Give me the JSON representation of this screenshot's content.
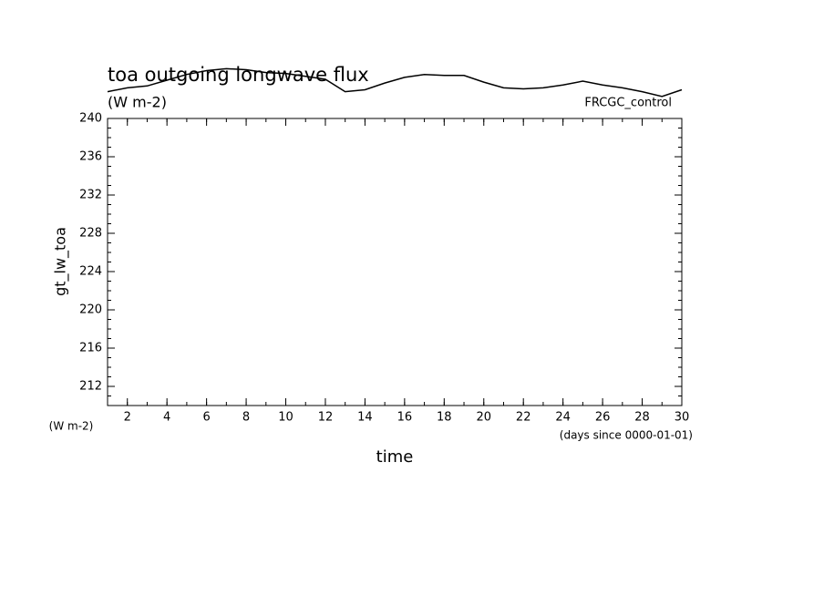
{
  "chart_data": {
    "type": "line",
    "title": "toa outgoing longwave flux",
    "subtitle": "(W m-2)",
    "annotation": "FRCGC_control",
    "y_label": "gt_lw_toa",
    "y_unit": "(W m-2)",
    "x_label": "time",
    "x_unit": "(days since 0000-01-01)",
    "x": [
      1,
      2,
      3,
      4,
      5,
      6,
      7,
      8,
      9,
      10,
      11,
      12,
      13,
      14,
      15,
      16,
      17,
      18,
      19,
      20,
      21,
      22,
      23,
      24,
      25,
      26,
      27,
      28,
      29,
      30
    ],
    "series": [
      {
        "name": "gt_lw_toa",
        "color": "#000000",
        "values": [
          242.8,
          243.2,
          243.4,
          244.0,
          244.6,
          245.0,
          245.2,
          245.1,
          244.8,
          244.7,
          244.4,
          244.1,
          242.8,
          243.0,
          243.7,
          244.3,
          244.6,
          244.5,
          244.5,
          243.8,
          243.2,
          243.1,
          243.2,
          243.5,
          243.9,
          243.5,
          243.2,
          242.8,
          242.3,
          243.0
        ]
      }
    ],
    "xlim": [
      1,
      30
    ],
    "xticks": [
      2,
      4,
      6,
      8,
      10,
      12,
      14,
      16,
      18,
      20,
      22,
      24,
      26,
      28,
      30
    ],
    "ylim": [
      210,
      240
    ],
    "yticks": [
      212,
      216,
      220,
      224,
      228,
      232,
      236,
      240
    ],
    "grid": false
  }
}
